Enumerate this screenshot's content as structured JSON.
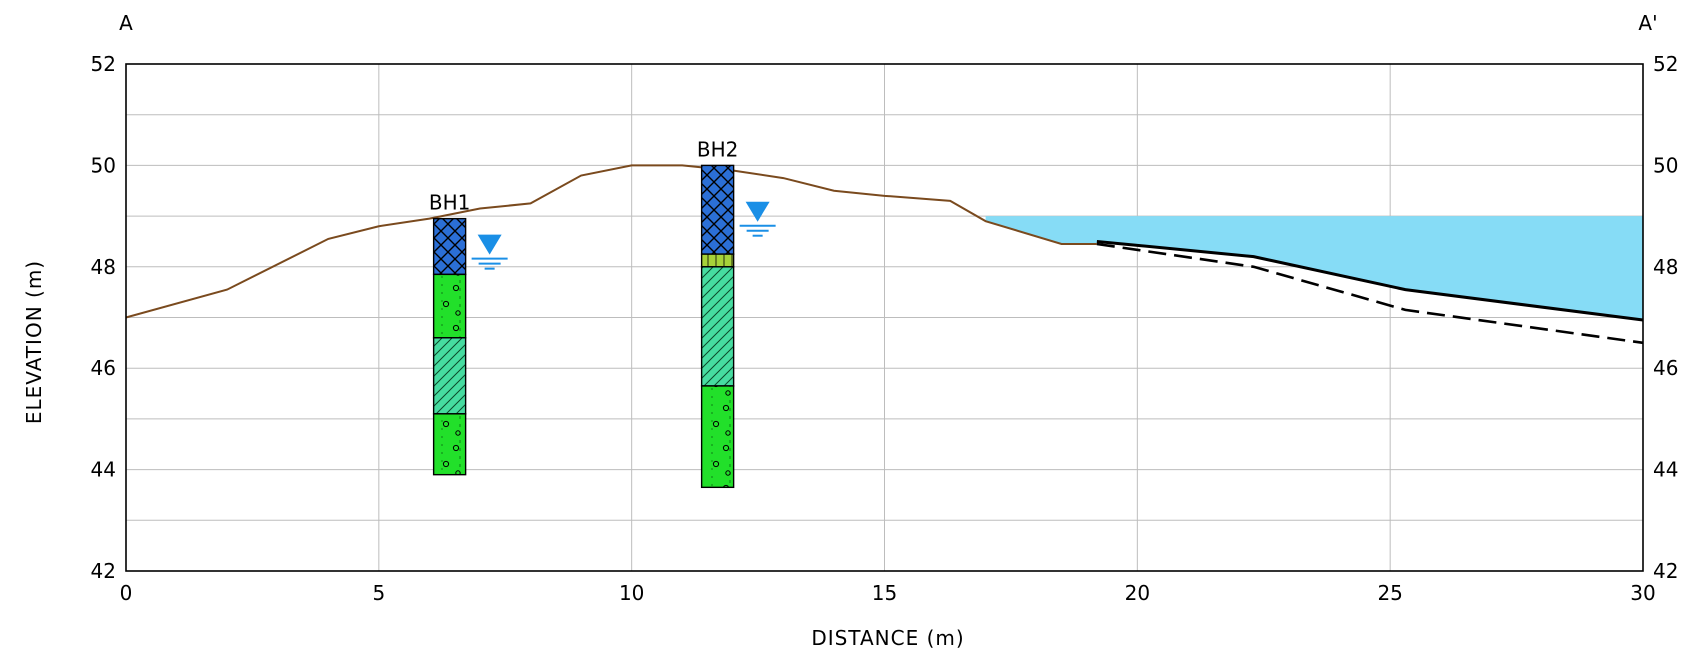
{
  "section": {
    "start_label": "A",
    "end_label": "A'"
  },
  "axes": {
    "xlabel": "DISTANCE (m)",
    "ylabel": "ELEVATION (m)",
    "xlim": [
      0,
      30
    ],
    "ylim": [
      42,
      52
    ],
    "x_ticks": [
      "0",
      "5",
      "10",
      "15",
      "20",
      "25",
      "30"
    ],
    "y_ticks": [
      "42",
      "44",
      "46",
      "48",
      "50",
      "52"
    ],
    "grid": true,
    "right_axis_labels": true
  },
  "colors": {
    "ground": "#7a4a1e",
    "water": "#86dcf6",
    "water_symbol": "#1a8fe6",
    "fill_blue": "#2b6fd6",
    "fill_green": "#22e02a",
    "fill_teal": "#46dca0",
    "fill_olive": "#a6d23a"
  },
  "chart_data": {
    "type": "line",
    "ground_surface": {
      "x": [
        0,
        2,
        4,
        5,
        6,
        7,
        8,
        9,
        10,
        11,
        12,
        13,
        14,
        15,
        16.3,
        17,
        18.5,
        19.2
      ],
      "y": [
        47.0,
        47.55,
        48.55,
        48.8,
        48.95,
        49.15,
        49.25,
        49.8,
        50.0,
        50.0,
        49.9,
        49.75,
        49.5,
        49.4,
        49.3,
        48.9,
        48.45,
        48.45
      ]
    },
    "water_body": {
      "surface_elevation": 49.0,
      "x_start": 17.0,
      "x_end": 30.0
    },
    "channel_bed_solid": {
      "x": [
        19.2,
        22.3,
        25.3,
        30.0
      ],
      "y": [
        48.5,
        48.2,
        47.55,
        46.95
      ]
    },
    "channel_bed_dashed": {
      "x": [
        19.2,
        22.3,
        25.3,
        30.0
      ],
      "y": [
        48.45,
        48.0,
        47.15,
        46.5
      ]
    },
    "boreholes": [
      {
        "name": "BH1",
        "x": 6.4,
        "water_level": 48.2,
        "layers": [
          {
            "top": 48.95,
            "bottom": 47.85,
            "fill": "crosshatch-blue"
          },
          {
            "top": 47.85,
            "bottom": 46.6,
            "fill": "gravel-green"
          },
          {
            "top": 46.6,
            "bottom": 45.1,
            "fill": "hatch-teal"
          },
          {
            "top": 45.1,
            "bottom": 43.9,
            "fill": "gravel-green"
          }
        ]
      },
      {
        "name": "BH2",
        "x": 11.7,
        "water_level": 48.85,
        "layers": [
          {
            "top": 50.0,
            "bottom": 48.25,
            "fill": "crosshatch-blue"
          },
          {
            "top": 48.25,
            "bottom": 48.0,
            "fill": "grid-olive"
          },
          {
            "top": 48.0,
            "bottom": 45.65,
            "fill": "hatch-teal"
          },
          {
            "top": 45.65,
            "bottom": 43.65,
            "fill": "gravel-green"
          }
        ]
      }
    ]
  }
}
